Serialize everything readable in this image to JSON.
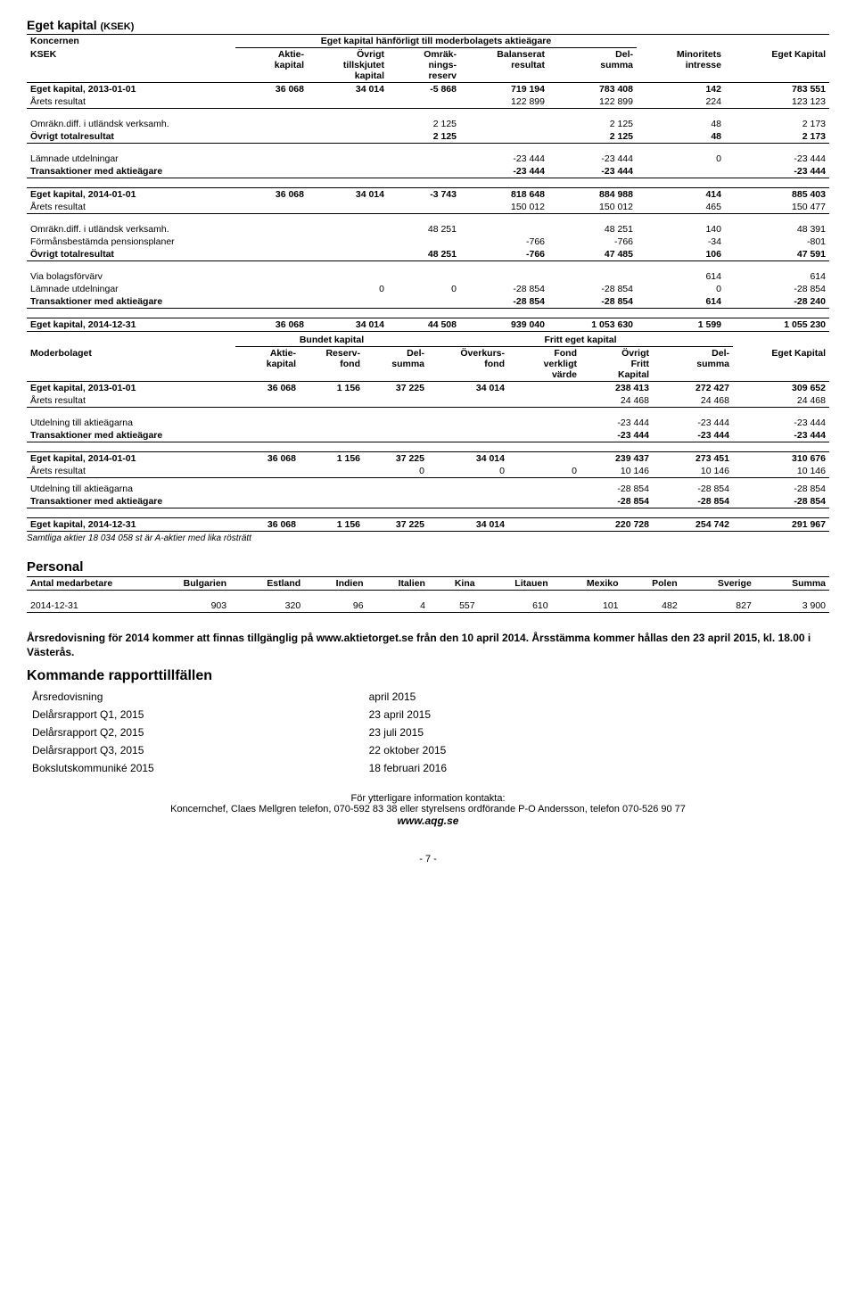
{
  "title": "Eget kapital",
  "title_unit": "(KSEK)",
  "koncernen_label": "Koncernen",
  "koncernen_sub": "Eget kapital hänförligt till moderbolagets aktieägare",
  "ksek_label": "KSEK",
  "columns_group": {
    "c1": "Aktie-\nkapital",
    "c2": "Övrigt\ntillskjutet\nkapital",
    "c3": "Omräk-\nnings-\nreserv",
    "c4": "Balanserat\nresultat",
    "c5": "Del-\nsumma",
    "c6": "Minoritets\nintresse",
    "c7": "Eget Kapital"
  },
  "group_rows": [
    {
      "label": "Eget kapital, 2013-01-01",
      "bold": true,
      "bt": true,
      "c1": "36 068",
      "c2": "34 014",
      "c3": "-5 868",
      "c4": "719 194",
      "c5": "783 408",
      "c6": "142",
      "c7": "783 551"
    },
    {
      "label": "Årets resultat",
      "bb": true,
      "c4": "122 899",
      "c5": "122 899",
      "c6": "224",
      "c7": "123 123"
    },
    {
      "spacer": true
    },
    {
      "label": "Omräkn.diff. i utländsk verksamh.",
      "c3": "2 125",
      "c5": "2 125",
      "c6": "48",
      "c7": "2 173"
    },
    {
      "label": "Övrigt totalresultat",
      "bold": true,
      "bb": true,
      "c3": "2 125",
      "c5": "2 125",
      "c6": "48",
      "c7": "2 173"
    },
    {
      "spacer": true
    },
    {
      "label": "Lämnade utdelningar",
      "c4": "-23 444",
      "c5": "-23 444",
      "c6": "0",
      "c7": "-23 444"
    },
    {
      "label": "Transaktioner med aktieägare",
      "bold": true,
      "bb": true,
      "c4": "-23 444",
      "c5": "-23 444",
      "c7": "-23 444"
    },
    {
      "spacer": true
    },
    {
      "label": "Eget kapital, 2014-01-01",
      "bold": true,
      "bt": true,
      "c1": "36 068",
      "c2": "34 014",
      "c3": "-3 743",
      "c4": "818 648",
      "c5": "884 988",
      "c6": "414",
      "c7": "885 403"
    },
    {
      "label": "Årets resultat",
      "bb": true,
      "c4": "150 012",
      "c5": "150 012",
      "c6": "465",
      "c7": "150 477"
    },
    {
      "spacer": true
    },
    {
      "label": "Omräkn.diff. i utländsk verksamh.",
      "c3": "48 251",
      "c5": "48 251",
      "c6": "140",
      "c7": "48 391"
    },
    {
      "label": "Förmånsbestämda pensionsplaner",
      "c4": "-766",
      "c5": "-766",
      "c6": "-34",
      "c7": "-801"
    },
    {
      "label": "Övrigt totalresultat",
      "bold": true,
      "bb": true,
      "c3": "48 251",
      "c4": "-766",
      "c5": "47 485",
      "c6": "106",
      "c7": "47 591"
    },
    {
      "spacer": true
    },
    {
      "label": "Via bolagsförvärv",
      "c6": "614",
      "c7": "614"
    },
    {
      "label": "Lämnade utdelningar",
      "c2": "0",
      "c3": "0",
      "c4": "-28 854",
      "c5": "-28 854",
      "c6": "0",
      "c7": "-28 854"
    },
    {
      "label": "Transaktioner med aktieägare",
      "bold": true,
      "bb": true,
      "c4": "-28 854",
      "c5": "-28 854",
      "c6": "614",
      "c7": "-28 240"
    },
    {
      "spacer": true
    },
    {
      "label": "Eget kapital, 2014-12-31",
      "bold": true,
      "bt": true,
      "bb": true,
      "c1": "36 068",
      "c2": "34 014",
      "c3": "44 508",
      "c4": "939 040",
      "c5": "1 053 630",
      "c6": "1 599",
      "c7": "1 055 230"
    }
  ],
  "moderbolaget_label": "Moderbolaget",
  "bundet_label": "Bundet kapital",
  "fritt_label": "Fritt eget kapital",
  "columns_parent": {
    "c1": "Aktie-\nkapital",
    "c2": "Reserv-\nfond",
    "c3": "Del-\nsumma",
    "c4": "Överkurs-\nfond",
    "c5": "Fond\nverkligt\nvärde",
    "c6": "Övrigt\nFritt\nKapital",
    "c7": "Del-\nsumma",
    "c8": "Eget Kapital"
  },
  "parent_rows": [
    {
      "label": "Eget kapital, 2013-01-01",
      "bold": true,
      "bt": true,
      "c1": "36 068",
      "c2": "1 156",
      "c3": "37 225",
      "c4": "34 014",
      "c6": "238 413",
      "c7": "272 427",
      "c8": "309 652"
    },
    {
      "label": "Årets resultat",
      "bb": true,
      "c6": "24 468",
      "c7": "24 468",
      "c8": "24 468"
    },
    {
      "spacer": true
    },
    {
      "label": "Utdelning till aktieägarna",
      "c6": "-23 444",
      "c7": "-23 444",
      "c8": "-23 444"
    },
    {
      "label": "Transaktioner med aktieägare",
      "bold": true,
      "bb": true,
      "c6": "-23 444",
      "c7": "-23 444",
      "c8": "-23 444"
    },
    {
      "spacer": true
    },
    {
      "label": "Eget kapital, 2014-01-01",
      "bold": true,
      "bt": true,
      "c1": "36 068",
      "c2": "1 156",
      "c3": "37 225",
      "c4": "34 014",
      "c6": "239 437",
      "c7": "273 451",
      "c8": "310 676"
    },
    {
      "label": "Årets resultat",
      "bb": true,
      "c3": "0",
      "c4": "0",
      "c5": "0",
      "c6": "10 146",
      "c7": "10 146",
      "c8": "10 146"
    },
    {
      "tiny": true
    },
    {
      "label": "Utdelning till aktieägarna",
      "c6": "-28 854",
      "c7": "-28 854",
      "c8": "-28 854"
    },
    {
      "label": "Transaktioner med aktieägare",
      "bold": true,
      "bb": true,
      "c6": "-28 854",
      "c7": "-28 854",
      "c8": "-28 854"
    },
    {
      "spacer": true
    },
    {
      "label": "Eget kapital, 2014-12-31",
      "bold": true,
      "bt": true,
      "bb": true,
      "c1": "36 068",
      "c2": "1 156",
      "c3": "37 225",
      "c4": "34 014",
      "c6": "220 728",
      "c7": "254 742",
      "c8": "291 967"
    }
  ],
  "note_shares": "Samtliga aktier 18 034 058 st är A-aktier med lika rösträtt",
  "personal_title": "Personal",
  "personal_header": {
    "c0": "Antal medarbetare",
    "c1": "Bulgarien",
    "c2": "Estland",
    "c3": "Indien",
    "c4": "Italien",
    "c5": "Kina",
    "c6": "Litauen",
    "c7": "Mexiko",
    "c8": "Polen",
    "c9": "Sverige",
    "c10": "Summa"
  },
  "personal_row": {
    "c0": "2014-12-31",
    "c1": "903",
    "c2": "320",
    "c3": "96",
    "c4": "4",
    "c5": "557",
    "c6": "610",
    "c7": "101",
    "c8": "482",
    "c9": "827",
    "c10": "3 900"
  },
  "annual_note": "Årsredovisning för 2014 kommer att finnas tillgänglig på www.aktietorget.se från den 10 april 2014. Årsstämma kommer hållas den 23 april 2015, kl. 18.00 i Västerås.",
  "kommande_title": "Kommande rapporttillfällen",
  "schedule": [
    {
      "l": "Årsredovisning",
      "r": "april 2015"
    },
    {
      "l": "Delårsrapport Q1, 2015",
      "r": "23 april 2015"
    },
    {
      "l": "Delårsrapport Q2, 2015",
      "r": "23 juli 2015"
    },
    {
      "l": "Delårsrapport Q3, 2015",
      "r": "22 oktober 2015"
    },
    {
      "l": "Bokslutskommuniké 2015",
      "r": "18 februari 2016"
    }
  ],
  "footer_line1": "För ytterligare information kontakta:",
  "footer_line2": "Koncernchef, Claes Mellgren telefon, 070-592 83 38 eller styrelsens ordförande P-O Andersson, telefon 070-526 90 77",
  "footer_url": "www.aqg.se",
  "page_number": "- 7 -"
}
